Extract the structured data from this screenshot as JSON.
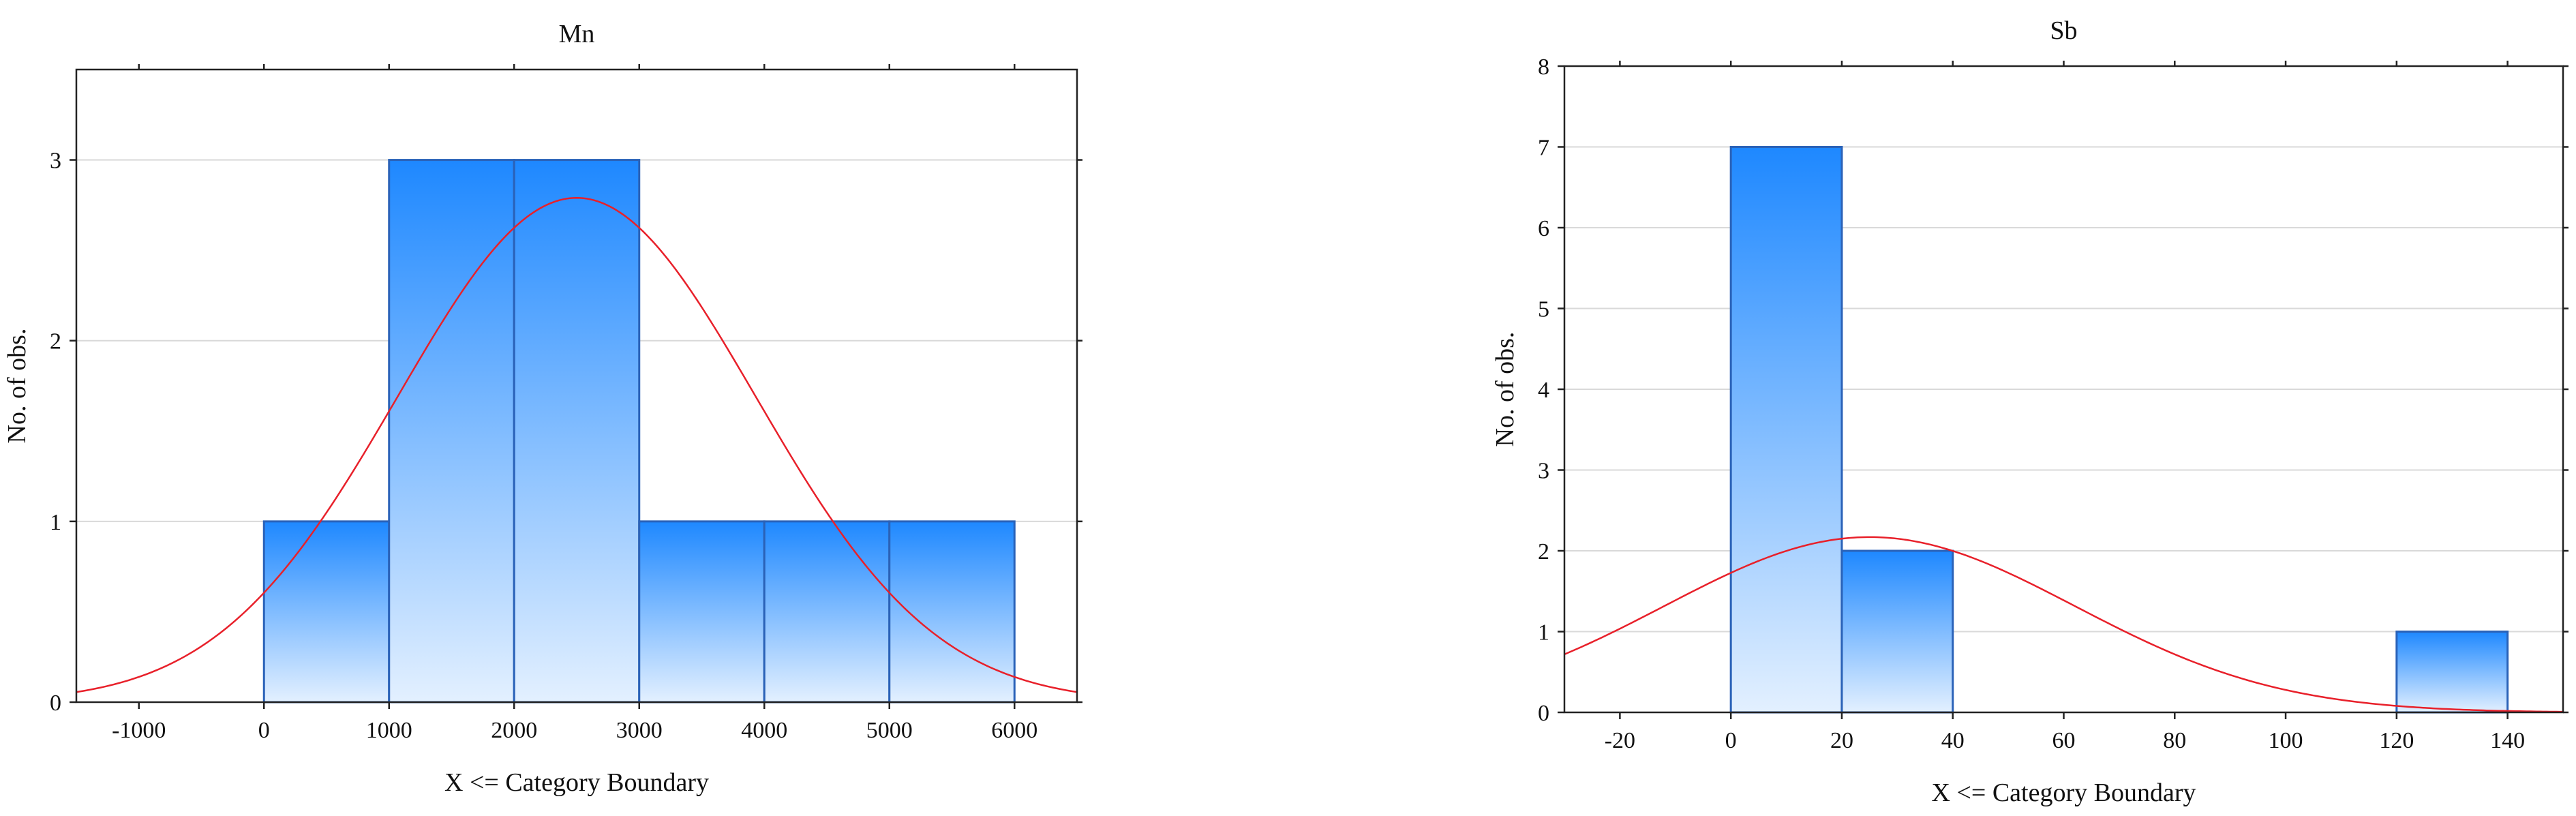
{
  "chart_data": [
    {
      "type": "bar",
      "title": "Mn",
      "xlabel": "X <= Category Boundary",
      "ylabel": "No. of obs.",
      "xlim": [
        -1500,
        6500
      ],
      "ylim": [
        0,
        3.5
      ],
      "xticks": [
        -1000,
        0,
        1000,
        2000,
        3000,
        4000,
        5000,
        6000
      ],
      "yticks": [
        0,
        1,
        2,
        3
      ],
      "grid": true,
      "bins": [
        {
          "x0": 0,
          "x1": 1000,
          "count": 1
        },
        {
          "x0": 1000,
          "x1": 2000,
          "count": 3
        },
        {
          "x0": 2000,
          "x1": 3000,
          "count": 3
        },
        {
          "x0": 3000,
          "x1": 4000,
          "count": 1
        },
        {
          "x0": 4000,
          "x1": 5000,
          "count": 1
        },
        {
          "x0": 5000,
          "x1": 6000,
          "count": 1
        }
      ],
      "normal_curve": {
        "mean": 2500,
        "sd": 1430,
        "peak": 2.79
      },
      "colors": {
        "bar_top": "#1e88ff",
        "bar_bottom": "#e3f0ff",
        "bar_edge": "#2a62b8",
        "curve": "#e8202a"
      }
    },
    {
      "type": "bar",
      "title": "Sb",
      "xlabel": "X <= Category Boundary",
      "ylabel": "No. of obs.",
      "xlim": [
        -30,
        150
      ],
      "ylim": [
        0,
        8
      ],
      "xticks": [
        -20,
        0,
        20,
        40,
        60,
        80,
        100,
        120,
        140
      ],
      "yticks": [
        0,
        1,
        2,
        3,
        4,
        5,
        6,
        7,
        8
      ],
      "grid": true,
      "bins": [
        {
          "x0": 0,
          "x1": 20,
          "count": 7
        },
        {
          "x0": 20,
          "x1": 40,
          "count": 2
        },
        {
          "x0": 120,
          "x1": 140,
          "count": 1
        }
      ],
      "normal_curve": {
        "mean": 25,
        "sd": 37,
        "peak": 2.17
      },
      "colors": {
        "bar_top": "#1e88ff",
        "bar_bottom": "#e3f0ff",
        "bar_edge": "#2a62b8",
        "curve": "#e8202a"
      }
    }
  ]
}
